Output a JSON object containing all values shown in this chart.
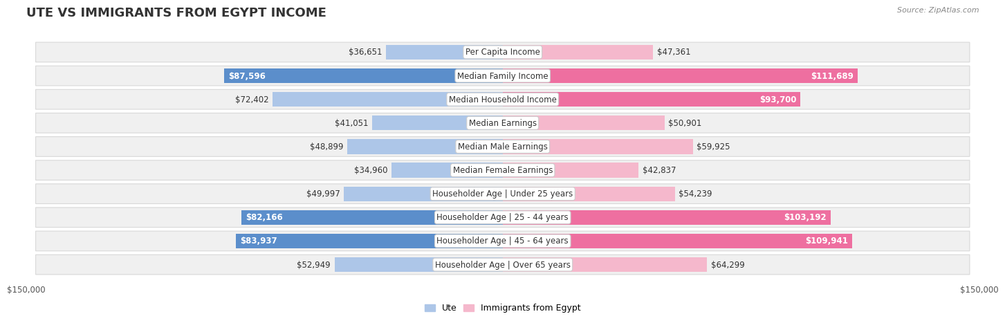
{
  "title": "Ute vs Immigrants from Egypt Income",
  "source": "Source: ZipAtlas.com",
  "categories": [
    "Per Capita Income",
    "Median Family Income",
    "Median Household Income",
    "Median Earnings",
    "Median Male Earnings",
    "Median Female Earnings",
    "Householder Age | Under 25 years",
    "Householder Age | 25 - 44 years",
    "Householder Age | 45 - 64 years",
    "Householder Age | Over 65 years"
  ],
  "ute_values": [
    36651,
    87596,
    72402,
    41051,
    48899,
    34960,
    49997,
    82166,
    83937,
    52949
  ],
  "egypt_values": [
    47361,
    111689,
    93700,
    50901,
    59925,
    42837,
    54239,
    103192,
    109941,
    64299
  ],
  "ute_color_light": "#adc6e8",
  "ute_color_dark": "#5b8ecb",
  "egypt_color_light": "#f5b8cc",
  "egypt_color_dark": "#ee6fa0",
  "ute_label": "Ute",
  "egypt_label": "Immigrants from Egypt",
  "max_value": 150000,
  "bar_height": 0.62,
  "row_bg_color": "#f0f0f0",
  "row_border_color": "#d8d8d8",
  "value_label_fontsize": 8.5,
  "category_fontsize": 8.5,
  "title_fontsize": 13,
  "axis_label_fontsize": 8.5,
  "legend_fontsize": 9,
  "large_value_threshold": 80000
}
